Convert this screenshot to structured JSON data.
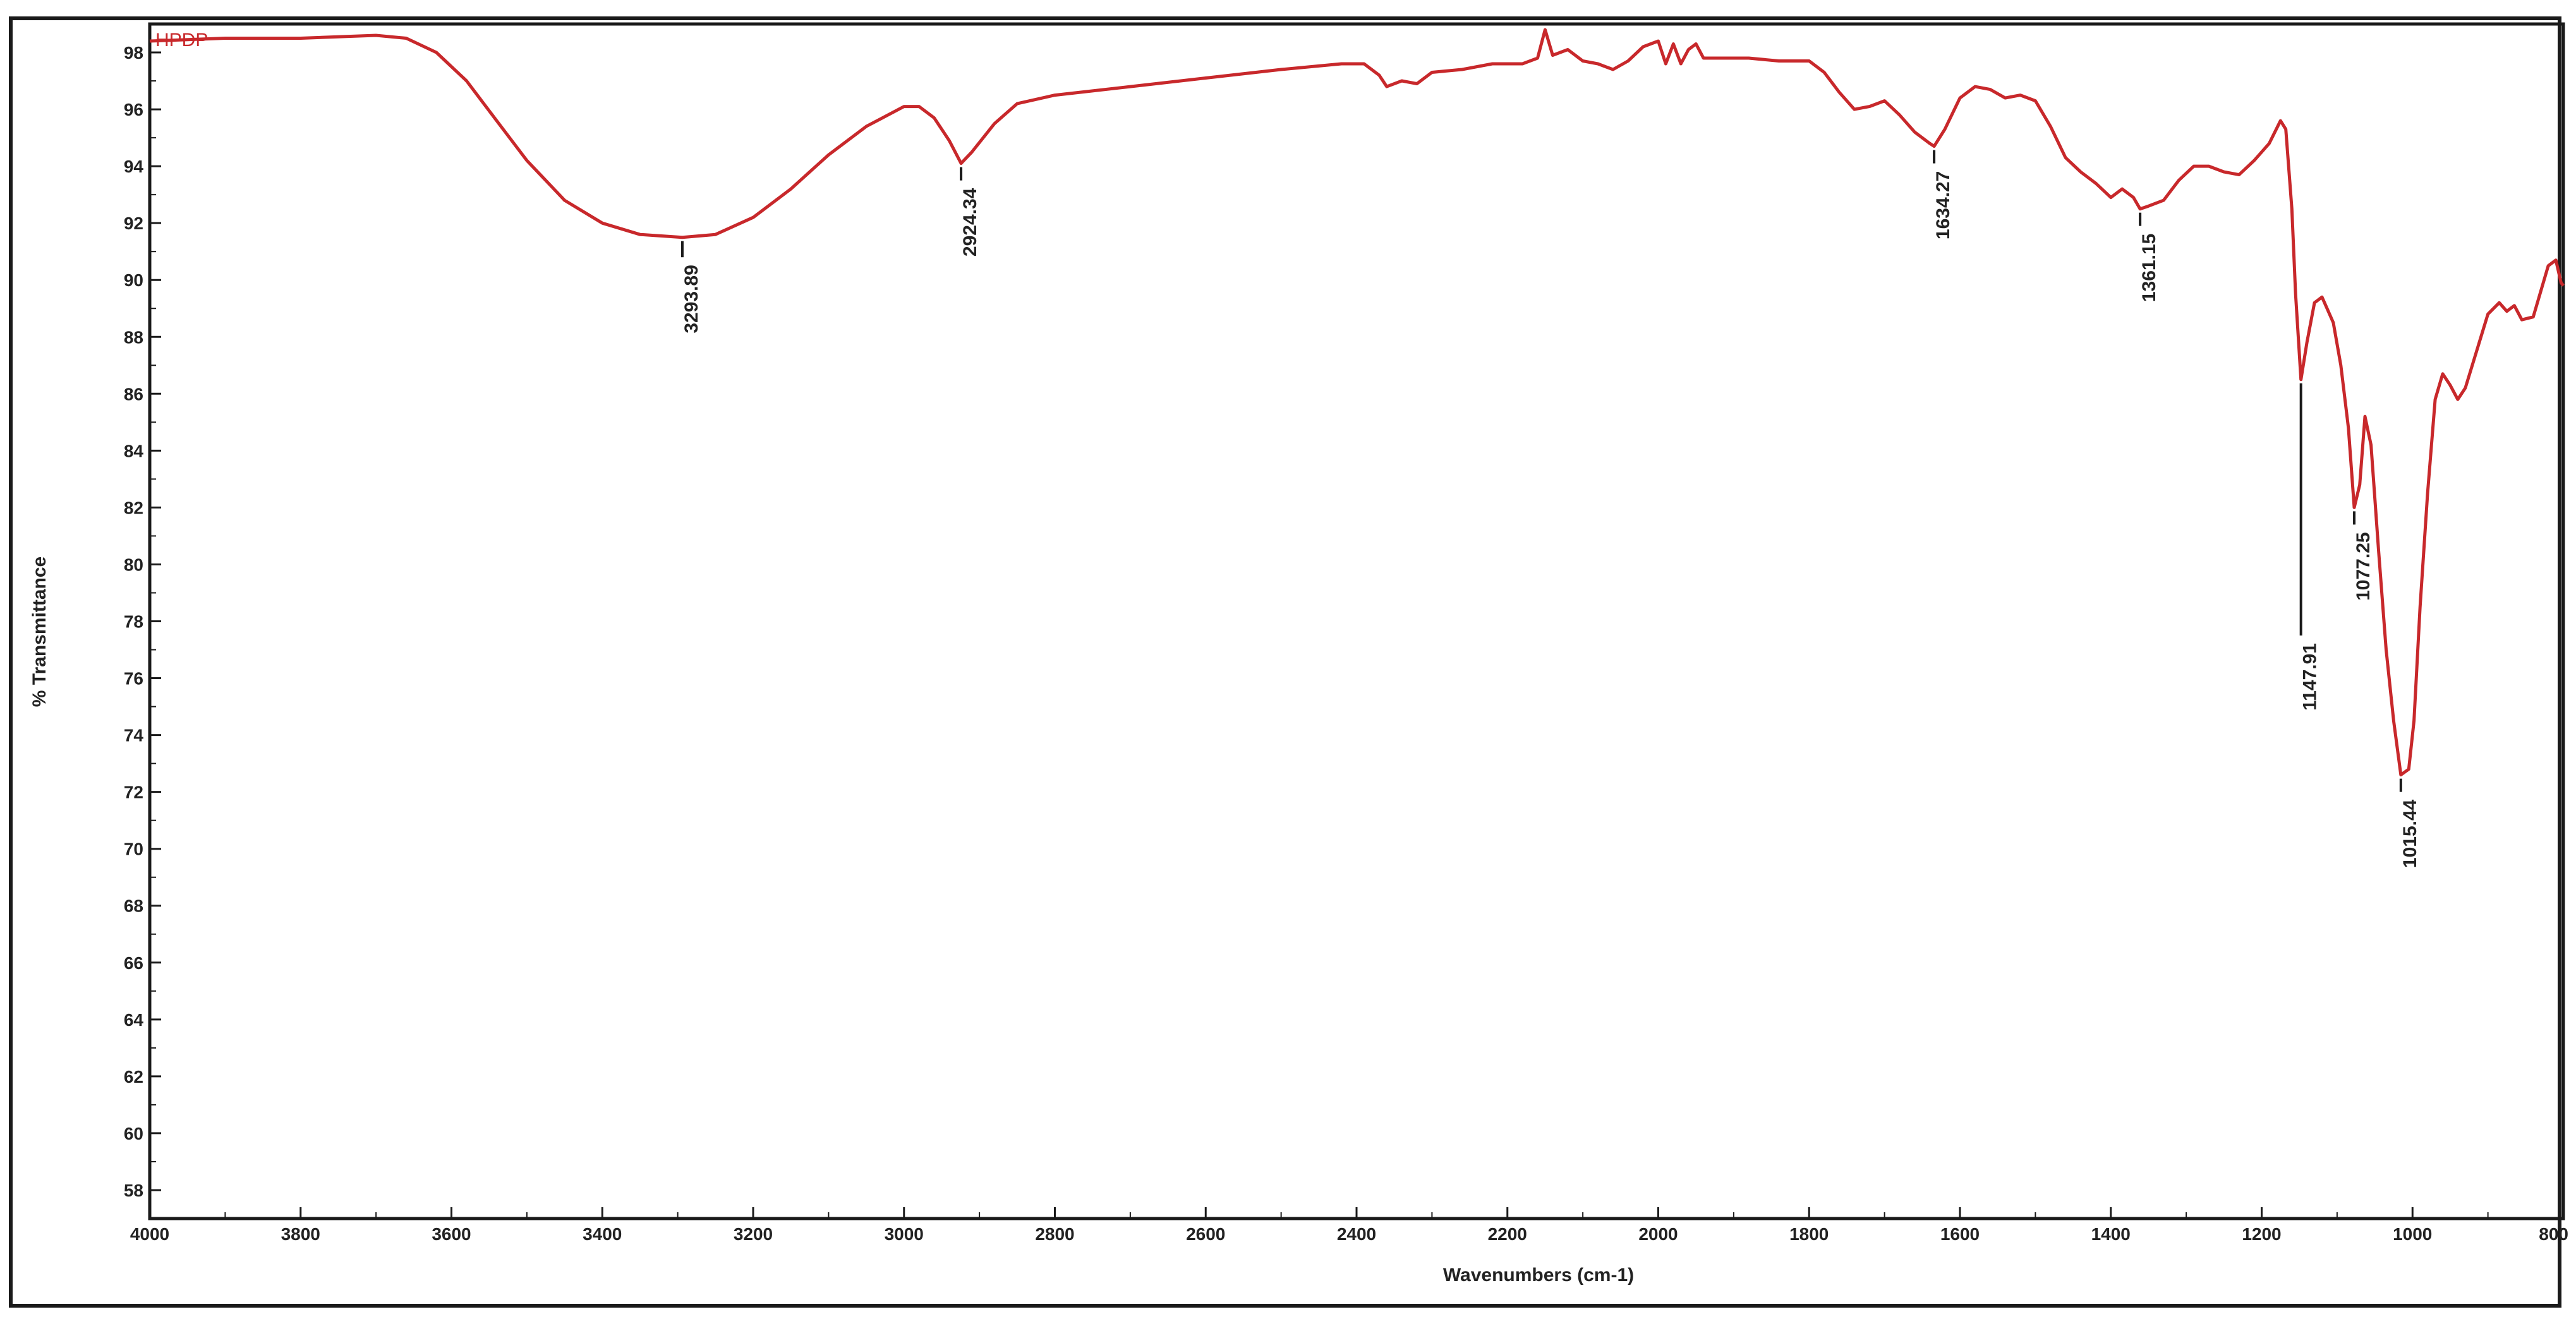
{
  "chart_data": {
    "type": "line",
    "xlabel": "Wavenumbers (cm-1)",
    "ylabel": "% Transmittance",
    "xlim": [
      4000,
      800
    ],
    "ylim": [
      57,
      99
    ],
    "x_ticks": [
      4000,
      3800,
      3600,
      3400,
      3200,
      3000,
      2800,
      2600,
      2400,
      2200,
      2000,
      1800,
      1600,
      1400,
      1200,
      1000,
      800
    ],
    "y_ticks": [
      58,
      60,
      62,
      64,
      66,
      68,
      70,
      72,
      74,
      76,
      78,
      80,
      82,
      84,
      86,
      88,
      90,
      92,
      94,
      96,
      98
    ],
    "x_reversed": true,
    "grid": false,
    "line_color": "#c8282b",
    "series": [
      {
        "name": "HPDP",
        "points": [
          [
            4000,
            98.4
          ],
          [
            3900,
            98.5
          ],
          [
            3800,
            98.5
          ],
          [
            3700,
            98.6
          ],
          [
            3660,
            98.5
          ],
          [
            3620,
            98.0
          ],
          [
            3580,
            97.0
          ],
          [
            3540,
            95.6
          ],
          [
            3500,
            94.2
          ],
          [
            3450,
            92.8
          ],
          [
            3400,
            92.0
          ],
          [
            3350,
            91.6
          ],
          [
            3293.89,
            91.5
          ],
          [
            3250,
            91.6
          ],
          [
            3200,
            92.2
          ],
          [
            3150,
            93.2
          ],
          [
            3100,
            94.4
          ],
          [
            3050,
            95.4
          ],
          [
            3000,
            96.1
          ],
          [
            2980,
            96.1
          ],
          [
            2960,
            95.7
          ],
          [
            2940,
            94.9
          ],
          [
            2924.34,
            94.1
          ],
          [
            2910,
            94.5
          ],
          [
            2880,
            95.5
          ],
          [
            2850,
            96.2
          ],
          [
            2800,
            96.5
          ],
          [
            2700,
            96.8
          ],
          [
            2600,
            97.1
          ],
          [
            2500,
            97.4
          ],
          [
            2420,
            97.6
          ],
          [
            2390,
            97.6
          ],
          [
            2370,
            97.2
          ],
          [
            2360,
            96.8
          ],
          [
            2340,
            97.0
          ],
          [
            2320,
            96.9
          ],
          [
            2300,
            97.3
          ],
          [
            2260,
            97.4
          ],
          [
            2220,
            97.6
          ],
          [
            2180,
            97.6
          ],
          [
            2160,
            97.8
          ],
          [
            2150,
            98.8
          ],
          [
            2140,
            97.9
          ],
          [
            2120,
            98.1
          ],
          [
            2100,
            97.7
          ],
          [
            2080,
            97.6
          ],
          [
            2060,
            97.4
          ],
          [
            2040,
            97.7
          ],
          [
            2020,
            98.2
          ],
          [
            2000,
            98.4
          ],
          [
            1990,
            97.6
          ],
          [
            1980,
            98.3
          ],
          [
            1970,
            97.6
          ],
          [
            1960,
            98.1
          ],
          [
            1950,
            98.3
          ],
          [
            1940,
            97.8
          ],
          [
            1920,
            97.8
          ],
          [
            1880,
            97.8
          ],
          [
            1840,
            97.7
          ],
          [
            1800,
            97.7
          ],
          [
            1780,
            97.3
          ],
          [
            1760,
            96.6
          ],
          [
            1740,
            96.0
          ],
          [
            1720,
            96.1
          ],
          [
            1700,
            96.3
          ],
          [
            1680,
            95.8
          ],
          [
            1660,
            95.2
          ],
          [
            1640,
            94.8
          ],
          [
            1634.27,
            94.7
          ],
          [
            1620,
            95.3
          ],
          [
            1600,
            96.4
          ],
          [
            1580,
            96.8
          ],
          [
            1560,
            96.7
          ],
          [
            1540,
            96.4
          ],
          [
            1520,
            96.5
          ],
          [
            1500,
            96.3
          ],
          [
            1480,
            95.4
          ],
          [
            1460,
            94.3
          ],
          [
            1440,
            93.8
          ],
          [
            1420,
            93.4
          ],
          [
            1400,
            92.9
          ],
          [
            1385,
            93.2
          ],
          [
            1370,
            92.9
          ],
          [
            1361.15,
            92.5
          ],
          [
            1350,
            92.6
          ],
          [
            1330,
            92.8
          ],
          [
            1310,
            93.5
          ],
          [
            1290,
            94.0
          ],
          [
            1270,
            94.0
          ],
          [
            1250,
            93.8
          ],
          [
            1230,
            93.7
          ],
          [
            1210,
            94.2
          ],
          [
            1190,
            94.8
          ],
          [
            1175,
            95.6
          ],
          [
            1168,
            95.3
          ],
          [
            1160,
            92.5
          ],
          [
            1155,
            89.5
          ],
          [
            1147.91,
            86.5
          ],
          [
            1140,
            87.8
          ],
          [
            1130,
            89.2
          ],
          [
            1120,
            89.4
          ],
          [
            1105,
            88.5
          ],
          [
            1095,
            87.0
          ],
          [
            1085,
            84.8
          ],
          [
            1077.25,
            82.0
          ],
          [
            1070,
            82.8
          ],
          [
            1063,
            85.2
          ],
          [
            1055,
            84.2
          ],
          [
            1045,
            80.5
          ],
          [
            1035,
            77.0
          ],
          [
            1025,
            74.5
          ],
          [
            1015.44,
            72.6
          ],
          [
            1005,
            72.8
          ],
          [
            998,
            74.5
          ],
          [
            990,
            78.5
          ],
          [
            980,
            82.5
          ],
          [
            970,
            85.8
          ],
          [
            960,
            86.7
          ],
          [
            950,
            86.3
          ],
          [
            940,
            85.8
          ],
          [
            930,
            86.2
          ],
          [
            915,
            87.5
          ],
          [
            900,
            88.8
          ],
          [
            885,
            89.2
          ],
          [
            875,
            88.9
          ],
          [
            865,
            89.1
          ],
          [
            855,
            88.6
          ],
          [
            840,
            88.7
          ],
          [
            830,
            89.6
          ],
          [
            820,
            90.5
          ],
          [
            810,
            90.7
          ],
          [
            803,
            89.9
          ],
          [
            800,
            89.8
          ]
        ]
      }
    ],
    "peaks": [
      {
        "label": "3293.89",
        "x": 3293.89,
        "y": 91.5,
        "tick_end": 90.8
      },
      {
        "label": "2924.34",
        "x": 2924.34,
        "y": 94.1,
        "tick_end": 93.5
      },
      {
        "label": "1634.27",
        "x": 1634.27,
        "y": 94.7,
        "tick_end": 94.1
      },
      {
        "label": "1361.15",
        "x": 1361.15,
        "y": 92.5,
        "tick_end": 91.9
      },
      {
        "label": "1147.91",
        "x": 1147.91,
        "y": 86.5,
        "tick_end": 77.5
      },
      {
        "label": "1077.25",
        "x": 1077.25,
        "y": 82.0,
        "tick_end": 81.4
      },
      {
        "label": "1015.44",
        "x": 1015.44,
        "y": 72.6,
        "tick_end": 72.0
      }
    ]
  }
}
